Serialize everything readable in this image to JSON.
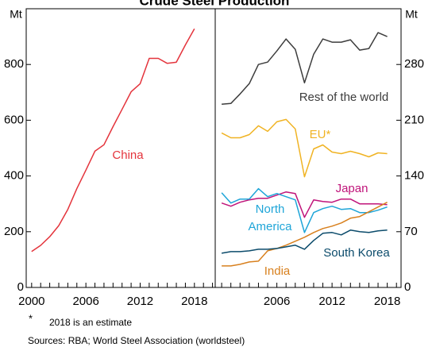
{
  "title": "Crude Steel Production",
  "footnote": {
    "marker": "*",
    "text": "2018 is an estimate"
  },
  "source": "Sources: RBA; World Steel Association (worldsteel)",
  "chart_data": [
    {
      "type": "line",
      "y_unit": "Mt",
      "x": [
        2000,
        2001,
        2002,
        2003,
        2004,
        2005,
        2006,
        2007,
        2008,
        2009,
        2010,
        2011,
        2012,
        2013,
        2014,
        2015,
        2016,
        2017,
        2018
      ],
      "xlim": [
        1999.4,
        2020.3
      ],
      "xticks": [
        2000,
        2006,
        2012,
        2018
      ],
      "xminor_ticks": [
        2000,
        2001,
        2002,
        2003,
        2004,
        2005,
        2006,
        2007,
        2008,
        2009,
        2010,
        2011,
        2012,
        2013,
        2014,
        2015,
        2016,
        2017,
        2018,
        2019,
        2020
      ],
      "ylim": [
        0,
        1000
      ],
      "yticks": [
        0,
        200,
        400,
        600,
        800
      ],
      "series": [
        {
          "name": "China",
          "color": "#e4343c",
          "values": [
            129,
            151,
            182,
            222,
            280,
            355,
            421,
            489,
            512,
            577,
            639,
            702,
            731,
            822,
            822,
            804,
            808,
            870,
            928
          ]
        }
      ]
    },
    {
      "type": "line",
      "y_unit": "Mt",
      "x": [
        2000,
        2001,
        2002,
        2003,
        2004,
        2005,
        2006,
        2007,
        2008,
        2009,
        2010,
        2011,
        2012,
        2013,
        2014,
        2015,
        2016,
        2017,
        2018
      ],
      "xlim": [
        1999.3,
        2019.5
      ],
      "xticks": [
        2006,
        2012,
        2018
      ],
      "xminor_ticks": [
        2000,
        2001,
        2002,
        2003,
        2004,
        2005,
        2006,
        2007,
        2008,
        2009,
        2010,
        2011,
        2012,
        2013,
        2014,
        2015,
        2016,
        2017,
        2018,
        2019
      ],
      "ylim": [
        0,
        350
      ],
      "yticks": [
        0,
        70,
        140,
        210,
        280
      ],
      "series": [
        {
          "name": "Rest of the world",
          "color": "#3c3c3c",
          "values": [
            230,
            231,
            243,
            256,
            280,
            283,
            297,
            312,
            299,
            257,
            293,
            312,
            308,
            308,
            311,
            298,
            300,
            320,
            315
          ]
        },
        {
          "name": "EU*",
          "color": "#f0b323",
          "values": [
            194,
            188,
            188,
            192,
            203,
            196,
            208,
            211,
            199,
            139,
            174,
            179,
            170,
            168,
            171,
            168,
            164,
            169,
            168
          ]
        },
        {
          "name": "Japan",
          "color": "#c0147a",
          "values": [
            106,
            102,
            107,
            110,
            112,
            112,
            116,
            120,
            118,
            88,
            110,
            108,
            107,
            111,
            111,
            105,
            105,
            105,
            104
          ]
        },
        {
          "name": "North America",
          "color": "#1ea5d8",
          "values": [
            119,
            106,
            111,
            111,
            124,
            114,
            118,
            114,
            110,
            69,
            94,
            99,
            102,
            98,
            99,
            94,
            94,
            97,
            101
          ]
        },
        {
          "name": "India",
          "color": "#d8801e",
          "values": [
            27,
            27,
            29,
            32,
            33,
            46,
            49,
            53,
            58,
            63,
            69,
            74,
            77,
            81,
            87,
            89,
            95,
            101,
            107
          ]
        },
        {
          "name": "South Korea",
          "color": "#0b4b6b",
          "values": [
            43,
            45,
            45,
            46,
            48,
            48,
            49,
            51,
            53,
            48,
            59,
            68,
            69,
            66,
            72,
            70,
            69,
            71,
            72
          ]
        }
      ]
    }
  ]
}
